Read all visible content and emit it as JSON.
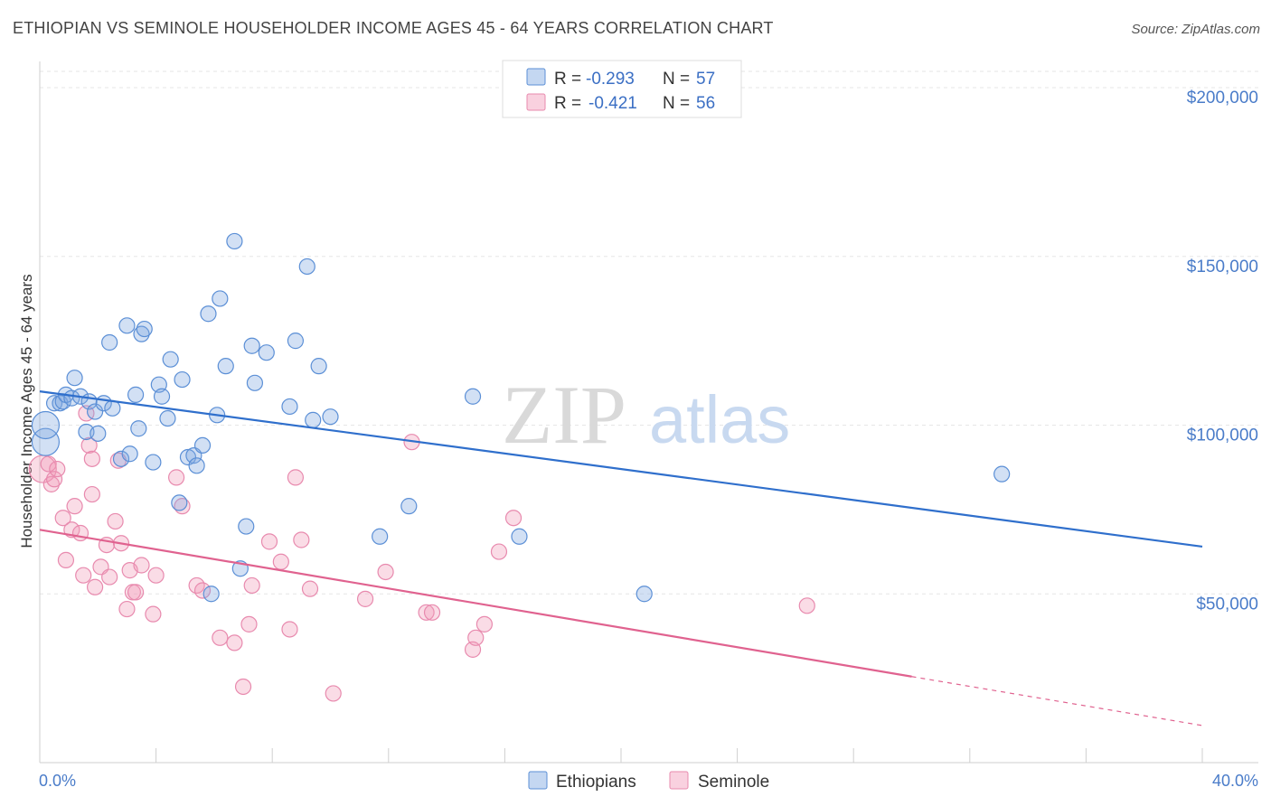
{
  "title": "ETHIOPIAN VS SEMINOLE HOUSEHOLDER INCOME AGES 45 - 64 YEARS CORRELATION CHART",
  "source": "Source: ZipAtlas.com",
  "watermark": {
    "zip": "ZIP",
    "atlas": "atlas"
  },
  "chart_data": {
    "type": "scatter",
    "ylabel": "Householder Income Ages 45 - 64 years",
    "xlim": [
      0,
      40
    ],
    "ylim": [
      0,
      210000
    ],
    "x_tick_labels": [
      "0.0%",
      "40.0%"
    ],
    "y_ticks": [
      {
        "value": 50000,
        "label": "$50,000"
      },
      {
        "value": 100000,
        "label": "$100,000"
      },
      {
        "value": 150000,
        "label": "$150,000"
      },
      {
        "value": 200000,
        "label": "$200,000"
      }
    ],
    "grid": true,
    "legend_position": "top-center",
    "series": [
      {
        "name": "Ethiopians",
        "color": "#7da7e0",
        "line_color": "#2f6fcc",
        "r": "-0.293",
        "n": "57",
        "trend": {
          "x0": 0,
          "y0": 110000,
          "x1": 40,
          "y1": 64000
        },
        "points": [
          [
            0.2,
            95000
          ],
          [
            0.2,
            100000
          ],
          [
            0.5,
            106500
          ],
          [
            0.7,
            106500
          ],
          [
            0.8,
            107000
          ],
          [
            0.9,
            109000
          ],
          [
            1.1,
            108000
          ],
          [
            1.2,
            114000
          ],
          [
            1.4,
            108500
          ],
          [
            1.6,
            98000
          ],
          [
            1.7,
            107000
          ],
          [
            1.9,
            104000
          ],
          [
            2.0,
            97500
          ],
          [
            2.2,
            106500
          ],
          [
            2.5,
            105000
          ],
          [
            2.4,
            124500
          ],
          [
            2.8,
            90000
          ],
          [
            3.0,
            129500
          ],
          [
            3.1,
            91500
          ],
          [
            3.3,
            109000
          ],
          [
            3.4,
            99000
          ],
          [
            3.5,
            127000
          ],
          [
            3.6,
            128500
          ],
          [
            3.9,
            89000
          ],
          [
            4.1,
            112000
          ],
          [
            4.2,
            108500
          ],
          [
            4.4,
            102000
          ],
          [
            4.5,
            119500
          ],
          [
            4.8,
            77000
          ],
          [
            4.9,
            113500
          ],
          [
            5.1,
            90500
          ],
          [
            5.3,
            91000
          ],
          [
            5.4,
            88000
          ],
          [
            5.6,
            94000
          ],
          [
            5.8,
            133000
          ],
          [
            5.9,
            50000
          ],
          [
            6.1,
            103000
          ],
          [
            6.2,
            137500
          ],
          [
            6.4,
            117500
          ],
          [
            6.7,
            154500
          ],
          [
            6.9,
            57500
          ],
          [
            7.1,
            70000
          ],
          [
            7.3,
            123500
          ],
          [
            7.4,
            112500
          ],
          [
            7.8,
            121500
          ],
          [
            8.6,
            105500
          ],
          [
            8.8,
            125000
          ],
          [
            9.2,
            147000
          ],
          [
            9.4,
            101500
          ],
          [
            9.6,
            117500
          ],
          [
            10.0,
            102500
          ],
          [
            11.7,
            67000
          ],
          [
            12.7,
            76000
          ],
          [
            14.9,
            108500
          ],
          [
            16.5,
            67000
          ],
          [
            20.8,
            50000
          ],
          [
            33.1,
            85500
          ]
        ]
      },
      {
        "name": "Seminole",
        "color": "#f29ab8",
        "line_color": "#e0628f",
        "r": "-0.421",
        "n": "56",
        "trend": {
          "x0": 0,
          "y0": 69000,
          "x1": 40,
          "y1": 11000,
          "solid_until": 30
        },
        "points": [
          [
            0.1,
            87000
          ],
          [
            0.3,
            88500
          ],
          [
            0.4,
            82500
          ],
          [
            0.5,
            84000
          ],
          [
            0.6,
            87000
          ],
          [
            0.8,
            72500
          ],
          [
            0.9,
            60000
          ],
          [
            1.1,
            69000
          ],
          [
            1.2,
            76000
          ],
          [
            1.4,
            68000
          ],
          [
            1.5,
            55500
          ],
          [
            1.6,
            103500
          ],
          [
            1.7,
            94000
          ],
          [
            1.8,
            79500
          ],
          [
            1.9,
            52000
          ],
          [
            2.1,
            58000
          ],
          [
            2.3,
            64500
          ],
          [
            2.4,
            55000
          ],
          [
            2.6,
            71500
          ],
          [
            2.8,
            65000
          ],
          [
            3.0,
            45500
          ],
          [
            3.1,
            57000
          ],
          [
            3.2,
            50500
          ],
          [
            3.3,
            50500
          ],
          [
            3.5,
            58500
          ],
          [
            3.9,
            44000
          ],
          [
            4.0,
            55500
          ],
          [
            4.7,
            84500
          ],
          [
            4.9,
            76000
          ],
          [
            5.4,
            52500
          ],
          [
            5.6,
            51000
          ],
          [
            6.2,
            37000
          ],
          [
            6.7,
            35500
          ],
          [
            7.0,
            22500
          ],
          [
            7.2,
            41000
          ],
          [
            7.3,
            52500
          ],
          [
            7.9,
            65500
          ],
          [
            8.3,
            59500
          ],
          [
            8.6,
            39500
          ],
          [
            8.8,
            84500
          ],
          [
            9.0,
            66000
          ],
          [
            9.3,
            51500
          ],
          [
            10.1,
            20500
          ],
          [
            11.2,
            48500
          ],
          [
            11.9,
            56500
          ],
          [
            12.8,
            95000
          ],
          [
            13.3,
            44500
          ],
          [
            13.5,
            44500
          ],
          [
            14.9,
            33500
          ],
          [
            15.0,
            37000
          ],
          [
            15.3,
            41000
          ],
          [
            15.8,
            62500
          ],
          [
            16.3,
            72500
          ],
          [
            26.4,
            46500
          ],
          [
            1.8,
            90000
          ],
          [
            2.7,
            89500
          ]
        ]
      }
    ]
  }
}
